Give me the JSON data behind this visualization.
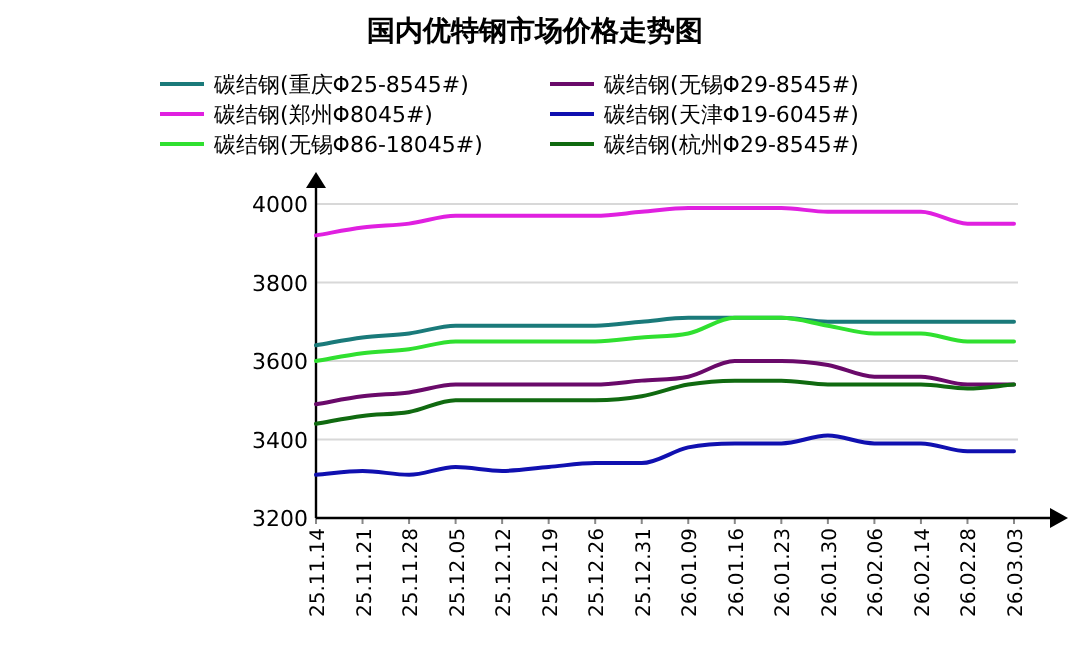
{
  "chart_data": {
    "type": "line",
    "title": "国内优特钢市场价格走势图",
    "categories": [
      "25.11.14",
      "25.11.21",
      "25.11.28",
      "25.12.05",
      "25.12.12",
      "25.12.19",
      "25.12.26",
      "25.12.31",
      "26.01.09",
      "26.01.16",
      "26.01.23",
      "26.01.30",
      "26.02.06",
      "26.02.14",
      "26.02.28",
      "26.03.03"
    ],
    "series": [
      {
        "name": "碳结钢(重庆Φ25-8545#)",
        "color": "#1a7a7a",
        "values": [
          3640,
          3660,
          3670,
          3690,
          3690,
          3690,
          3690,
          3700,
          3710,
          3710,
          3710,
          3700,
          3700,
          3700,
          3700,
          3700
        ]
      },
      {
        "name": "碳结钢(无锡Φ29-8545#)",
        "color": "#6a0a6a",
        "values": [
          3490,
          3510,
          3520,
          3540,
          3540,
          3540,
          3540,
          3550,
          3560,
          3600,
          3600,
          3590,
          3560,
          3560,
          3540,
          3540
        ]
      },
      {
        "name": "碳结钢(郑州Φ8045#)",
        "color": "#e020e0",
        "values": [
          3920,
          3940,
          3950,
          3970,
          3970,
          3970,
          3970,
          3980,
          3990,
          3990,
          3990,
          3980,
          3980,
          3980,
          3950,
          3950
        ]
      },
      {
        "name": "碳结钢(天津Φ19-6045#)",
        "color": "#1010b0",
        "values": [
          3310,
          3320,
          3310,
          3330,
          3320,
          3330,
          3340,
          3340,
          3380,
          3390,
          3390,
          3410,
          3390,
          3390,
          3370,
          3370
        ]
      },
      {
        "name": "碳结钢(无锡Φ86-18045#)",
        "color": "#30e030",
        "values": [
          3600,
          3620,
          3630,
          3650,
          3650,
          3650,
          3650,
          3660,
          3670,
          3710,
          3710,
          3690,
          3670,
          3670,
          3650,
          3650
        ]
      },
      {
        "name": "碳结钢(杭州Φ29-8545#)",
        "color": "#106a10",
        "values": [
          3440,
          3460,
          3470,
          3500,
          3500,
          3500,
          3500,
          3510,
          3540,
          3550,
          3550,
          3540,
          3540,
          3540,
          3530,
          3540
        ]
      }
    ],
    "ylim": [
      3200,
      4000
    ],
    "yticks": [
      3200,
      3400,
      3600,
      3800,
      4000
    ],
    "grid": "y",
    "legend": "top",
    "marker": "none",
    "line_style": "solid"
  }
}
